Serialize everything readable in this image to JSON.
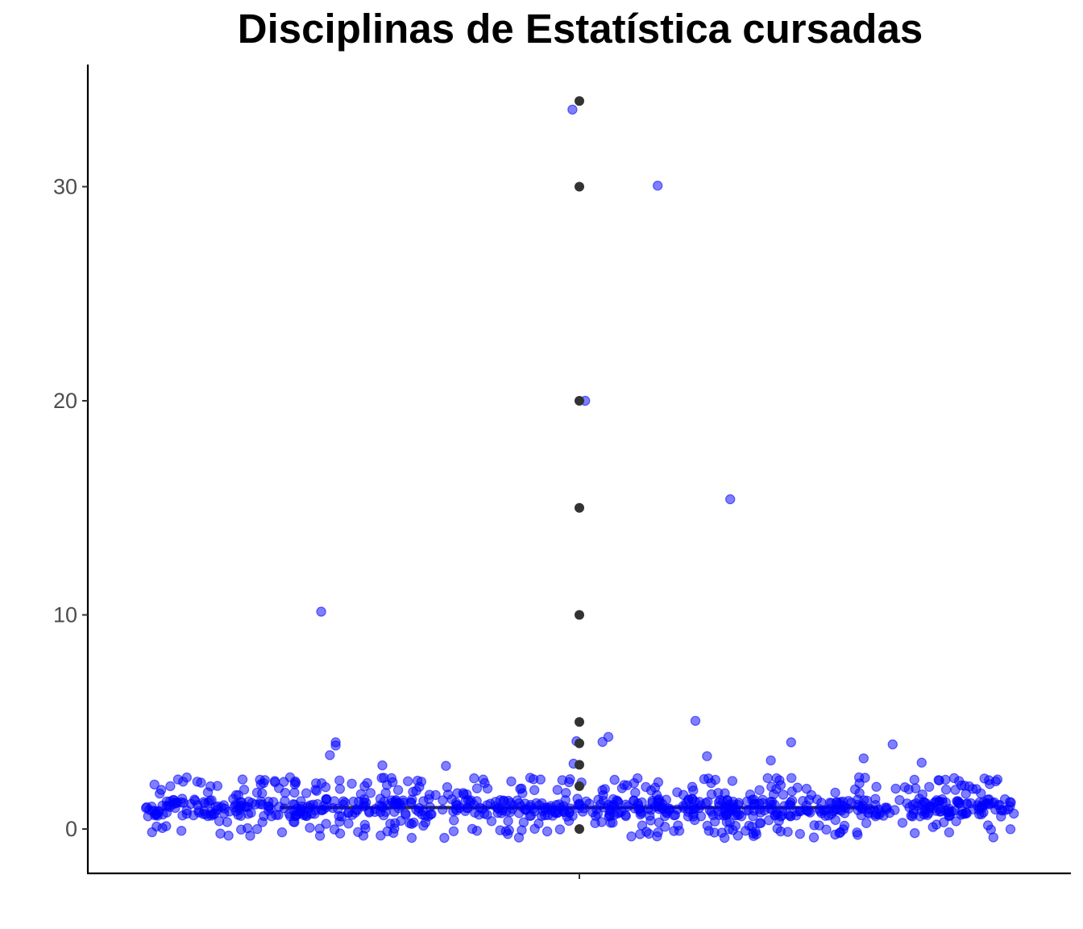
{
  "chart_data": {
    "type": "scatter",
    "title": "Disciplinas de Estatística cursadas",
    "xlabel": "",
    "ylabel": "",
    "ylim": [
      -2,
      34.5
    ],
    "yticks": [
      0,
      10,
      20,
      30
    ],
    "grid": false,
    "legend": "none",
    "colors": {
      "jitter_points": "#0000ff",
      "outlier_points": "#333333",
      "axis": "#000000"
    },
    "boxplot": {
      "min": 0,
      "q1": 1,
      "median": 1,
      "q3": 1,
      "max": 1,
      "outliers": [
        0,
        2,
        3,
        4,
        5,
        10,
        15,
        20,
        30,
        34
      ]
    },
    "jitter": {
      "note_counts": {
        "0": 130,
        "1": 620,
        "2": 160,
        "3": 8,
        "4": 7,
        "5": 1,
        "10": 1,
        "15": 1,
        "20": 1,
        "30": 1,
        "34": 1
      },
      "highlighted": [
        {
          "x": -0.012,
          "y": 33.6
        },
        {
          "x": 0.135,
          "y": 30.05
        },
        {
          "x": 0.01,
          "y": 20.0
        },
        {
          "x": 0.26,
          "y": 15.4
        },
        {
          "x": -0.445,
          "y": 10.15
        },
        {
          "x": 0.2,
          "y": 5.05
        },
        {
          "x": -0.42,
          "y": 4.05
        },
        {
          "x": -0.42,
          "y": 3.9
        },
        {
          "x": 0.365,
          "y": 4.05
        },
        {
          "x": 0.05,
          "y": 4.3
        },
        {
          "x": -0.005,
          "y": 4.1
        },
        {
          "x": 0.54,
          "y": 3.95
        },
        {
          "x": -0.43,
          "y": 3.45
        },
        {
          "x": 0.22,
          "y": 3.4
        },
        {
          "x": 0.33,
          "y": 3.2
        },
        {
          "x": 0.49,
          "y": 3.3
        },
        {
          "x": 0.59,
          "y": 3.1
        },
        {
          "x": -0.23,
          "y": 2.95
        },
        {
          "x": -0.01,
          "y": 3.05
        }
      ]
    }
  }
}
